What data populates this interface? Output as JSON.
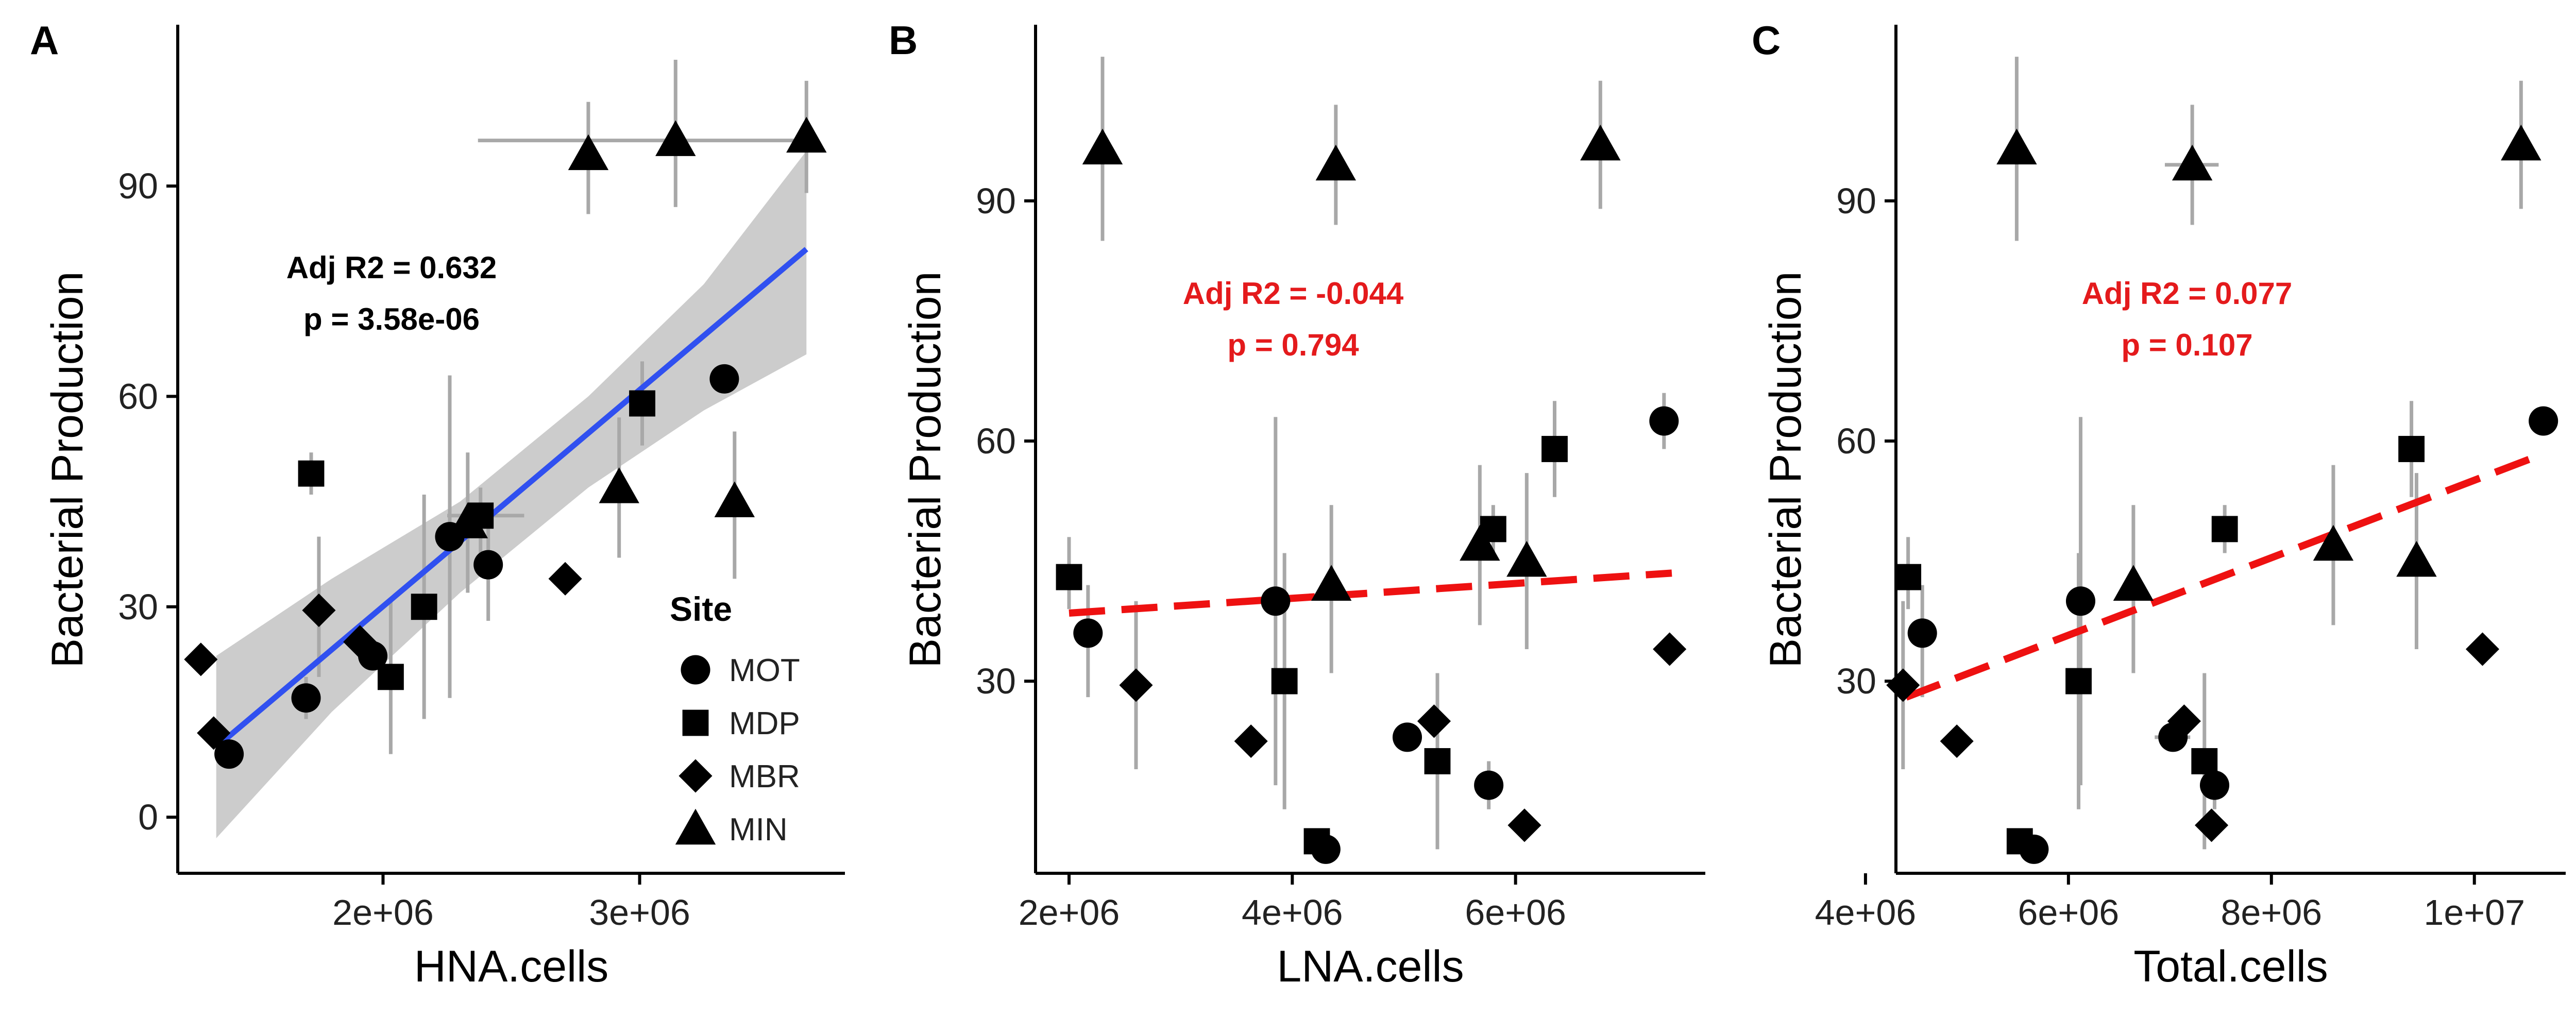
{
  "colors": {
    "axis": "#000000",
    "points": "#000000",
    "errorbar": "#a8a8a8",
    "fit_blue": "#3050f0",
    "fit_red": "#ee1111",
    "band": "#cccccc",
    "annot_red": "#e41a1c"
  },
  "legend": {
    "title": "Site",
    "entries": [
      {
        "label": "MOT",
        "shape": "circle"
      },
      {
        "label": "MDP",
        "shape": "square"
      },
      {
        "label": "MBR",
        "shape": "diamond"
      },
      {
        "label": "MIN",
        "shape": "triangle"
      }
    ]
  },
  "chart_data": [
    {
      "panel": "A",
      "type": "scatter",
      "xlabel": "HNA.cells",
      "ylabel": "Bacterial Production",
      "xlim": [
        1200000,
        3800000
      ],
      "ylim": [
        -8,
        113
      ],
      "xticks": [
        2000000,
        3000000
      ],
      "xtick_labels": [
        "2e+06",
        "3e+06"
      ],
      "yticks": [
        0,
        30,
        60,
        90
      ],
      "ytick_labels": [
        "0",
        "30",
        "60",
        "90"
      ],
      "fit": {
        "style": "solid",
        "color": "blue",
        "x": [
          1350000,
          3650000
        ],
        "y": [
          10,
          81
        ],
        "band": {
          "x": [
            1350000,
            1800000,
            2300000,
            2800000,
            3250000,
            3650000
          ],
          "lower": [
            -3,
            15,
            32,
            47,
            58,
            66
          ],
          "upper": [
            23,
            34,
            45,
            60,
            76,
            95
          ]
        }
      },
      "annotation": {
        "line1": "Adj R2 = 0.632",
        "line2": "p = 3.58e-06",
        "color": "black"
      },
      "points": [
        {
          "site": "MOT",
          "x": 1400000,
          "y": 9
        },
        {
          "site": "MOT",
          "x": 1700000,
          "y": 17,
          "ylo": 14,
          "yhi": 20
        },
        {
          "site": "MOT",
          "x": 1960000,
          "y": 23
        },
        {
          "site": "MOT",
          "x": 2260000,
          "y": 40,
          "ylo": 17,
          "yhi": 63
        },
        {
          "site": "MOT",
          "x": 2410000,
          "y": 36,
          "ylo": 28,
          "yhi": 42
        },
        {
          "site": "MOT",
          "x": 3330000,
          "y": 62.5
        },
        {
          "site": "MDP",
          "x": 1720000,
          "y": 49,
          "ylo": 46,
          "yhi": 52
        },
        {
          "site": "MDP",
          "x": 2030000,
          "y": 20,
          "ylo": 9,
          "yhi": 31
        },
        {
          "site": "MDP",
          "x": 2160000,
          "y": 30,
          "ylo": 14,
          "yhi": 46
        },
        {
          "site": "MDP",
          "x": 2380000,
          "y": 43,
          "ylo": 35,
          "yhi": 47,
          "xlo": 2250000,
          "xhi": 2550000
        },
        {
          "site": "MDP",
          "x": 3010000,
          "y": 59,
          "ylo": 53,
          "yhi": 65
        },
        {
          "site": "MBR",
          "x": 1290000,
          "y": 22.5
        },
        {
          "site": "MBR",
          "x": 1340000,
          "y": 12
        },
        {
          "site": "MBR",
          "x": 1750000,
          "y": 29.5,
          "ylo": 20,
          "yhi": 40
        },
        {
          "site": "MBR",
          "x": 1910000,
          "y": 25
        },
        {
          "site": "MBR",
          "x": 2710000,
          "y": 34
        },
        {
          "site": "MIN",
          "x": 2330000,
          "y": 42,
          "ylo": 32,
          "yhi": 52
        },
        {
          "site": "MIN",
          "x": 2800000,
          "y": 94.5,
          "ylo": 86,
          "yhi": 102
        },
        {
          "site": "MIN",
          "x": 2920000,
          "y": 47,
          "ylo": 37,
          "yhi": 57
        },
        {
          "site": "MIN",
          "x": 3140000,
          "y": 96.5,
          "ylo": 87,
          "yhi": 108,
          "xlo": 2370000,
          "xhi": 3620000
        },
        {
          "site": "MIN",
          "x": 3370000,
          "y": 45,
          "ylo": 34,
          "yhi": 55
        },
        {
          "site": "MIN",
          "x": 3650000,
          "y": 97,
          "ylo": 89,
          "yhi": 105
        }
      ]
    },
    {
      "panel": "B",
      "type": "scatter",
      "xlabel": "LNA.cells",
      "ylabel": "Bacterial Production",
      "xlim": [
        1700000,
        7700000
      ],
      "ylim": [
        6,
        112
      ],
      "xticks": [
        2000000,
        4000000,
        6000000
      ],
      "xtick_labels": [
        "2e+06",
        "4e+06",
        "6e+06"
      ],
      "yticks": [
        30,
        60,
        90
      ],
      "ytick_labels": [
        "30",
        "60",
        "90"
      ],
      "fit": {
        "style": "dashed",
        "color": "red",
        "x": [
          2000000,
          7400000
        ],
        "y": [
          38.5,
          43.5
        ]
      },
      "annotation": {
        "line1": "Adj R2 = -0.044",
        "line2": "p = 0.794",
        "color": "red"
      },
      "points": [
        {
          "site": "MOT",
          "x": 2170000,
          "y": 36,
          "ylo": 28,
          "yhi": 42
        },
        {
          "site": "MOT",
          "x": 3850000,
          "y": 40,
          "ylo": 17,
          "yhi": 63
        },
        {
          "site": "MOT",
          "x": 4300000,
          "y": 9
        },
        {
          "site": "MOT",
          "x": 5030000,
          "y": 23
        },
        {
          "site": "MOT",
          "x": 5760000,
          "y": 17,
          "ylo": 14,
          "yhi": 20
        },
        {
          "site": "MOT",
          "x": 7330000,
          "y": 62.5,
          "ylo": 59,
          "yhi": 66
        },
        {
          "site": "MDP",
          "x": 2000000,
          "y": 43,
          "ylo": 39,
          "yhi": 48
        },
        {
          "site": "MDP",
          "x": 3930000,
          "y": 30,
          "ylo": 14,
          "yhi": 46
        },
        {
          "site": "MDP",
          "x": 4220000,
          "y": 10
        },
        {
          "site": "MDP",
          "x": 5300000,
          "y": 20,
          "ylo": 9,
          "yhi": 31
        },
        {
          "site": "MDP",
          "x": 5800000,
          "y": 49,
          "ylo": 46,
          "yhi": 52
        },
        {
          "site": "MDP",
          "x": 6350000,
          "y": 59,
          "ylo": 53,
          "yhi": 65
        },
        {
          "site": "MBR",
          "x": 2600000,
          "y": 29.5,
          "ylo": 19,
          "yhi": 40
        },
        {
          "site": "MBR",
          "x": 3630000,
          "y": 22.5
        },
        {
          "site": "MBR",
          "x": 5270000,
          "y": 25
        },
        {
          "site": "MBR",
          "x": 6080000,
          "y": 12
        },
        {
          "site": "MBR",
          "x": 7380000,
          "y": 34
        },
        {
          "site": "MIN",
          "x": 2300000,
          "y": 96.5,
          "ylo": 85,
          "yhi": 108
        },
        {
          "site": "MIN",
          "x": 4350000,
          "y": 42,
          "ylo": 31,
          "yhi": 52
        },
        {
          "site": "MIN",
          "x": 4390000,
          "y": 94.5,
          "ylo": 87,
          "yhi": 102
        },
        {
          "site": "MIN",
          "x": 5680000,
          "y": 47,
          "ylo": 37,
          "yhi": 57
        },
        {
          "site": "MIN",
          "x": 6100000,
          "y": 45,
          "ylo": 34,
          "yhi": 56
        },
        {
          "site": "MIN",
          "x": 6760000,
          "y": 97,
          "ylo": 89,
          "yhi": 105
        }
      ]
    },
    {
      "panel": "C",
      "type": "scatter",
      "xlabel": "Total.cells",
      "ylabel": "Bacterial Production",
      "xlim": [
        4300000,
        10900000
      ],
      "ylim": [
        6,
        112
      ],
      "xticks": [
        4000000,
        6000000,
        8000000,
        10000000
      ],
      "xtick_labels": [
        "4e+06",
        "6e+06",
        "8e+06",
        "1e+07"
      ],
      "yticks": [
        30,
        60,
        90
      ],
      "ytick_labels": [
        "30",
        "60",
        "90"
      ],
      "fit": {
        "style": "dashed",
        "color": "red",
        "x": [
          4400000,
          10600000
        ],
        "y": [
          28,
          58
        ]
      },
      "annotation": {
        "line1": "Adj R2 = 0.077",
        "line2": "p = 0.107",
        "color": "red"
      },
      "points": [
        {
          "site": "MOT",
          "x": 4560000,
          "y": 36,
          "ylo": 28,
          "yhi": 42
        },
        {
          "site": "MOT",
          "x": 5660000,
          "y": 9
        },
        {
          "site": "MOT",
          "x": 6120000,
          "y": 40,
          "ylo": 17,
          "yhi": 63
        },
        {
          "site": "MOT",
          "x": 7030000,
          "y": 23,
          "xlo": 6850000,
          "xhi": 7200000
        },
        {
          "site": "MOT",
          "x": 7440000,
          "y": 17,
          "ylo": 14,
          "yhi": 20
        },
        {
          "site": "MOT",
          "x": 10680000,
          "y": 62.5
        },
        {
          "site": "MDP",
          "x": 4420000,
          "y": 43,
          "ylo": 39,
          "yhi": 48
        },
        {
          "site": "MDP",
          "x": 5520000,
          "y": 10
        },
        {
          "site": "MDP",
          "x": 6100000,
          "y": 30,
          "ylo": 14,
          "yhi": 46
        },
        {
          "site": "MDP",
          "x": 7340000,
          "y": 20,
          "ylo": 9,
          "yhi": 31
        },
        {
          "site": "MDP",
          "x": 7540000,
          "y": 49,
          "ylo": 46,
          "yhi": 52
        },
        {
          "site": "MDP",
          "x": 9380000,
          "y": 59,
          "ylo": 53,
          "yhi": 65
        },
        {
          "site": "MBR",
          "x": 4370000,
          "y": 29.5,
          "ylo": 19,
          "yhi": 40
        },
        {
          "site": "MBR",
          "x": 4900000,
          "y": 22.5
        },
        {
          "site": "MBR",
          "x": 7140000,
          "y": 25
        },
        {
          "site": "MBR",
          "x": 7410000,
          "y": 12
        },
        {
          "site": "MBR",
          "x": 10080000,
          "y": 34
        },
        {
          "site": "MIN",
          "x": 5490000,
          "y": 96.5,
          "ylo": 85,
          "yhi": 108
        },
        {
          "site": "MIN",
          "x": 6640000,
          "y": 42,
          "ylo": 31,
          "yhi": 52
        },
        {
          "site": "MIN",
          "x": 7220000,
          "y": 94.5,
          "ylo": 87,
          "yhi": 102,
          "xlo": 6950000,
          "xhi": 7480000
        },
        {
          "site": "MIN",
          "x": 8610000,
          "y": 47,
          "ylo": 37,
          "yhi": 57
        },
        {
          "site": "MIN",
          "x": 9430000,
          "y": 45,
          "ylo": 34,
          "yhi": 56
        },
        {
          "site": "MIN",
          "x": 10460000,
          "y": 97,
          "ylo": 89,
          "yhi": 105
        }
      ]
    }
  ]
}
